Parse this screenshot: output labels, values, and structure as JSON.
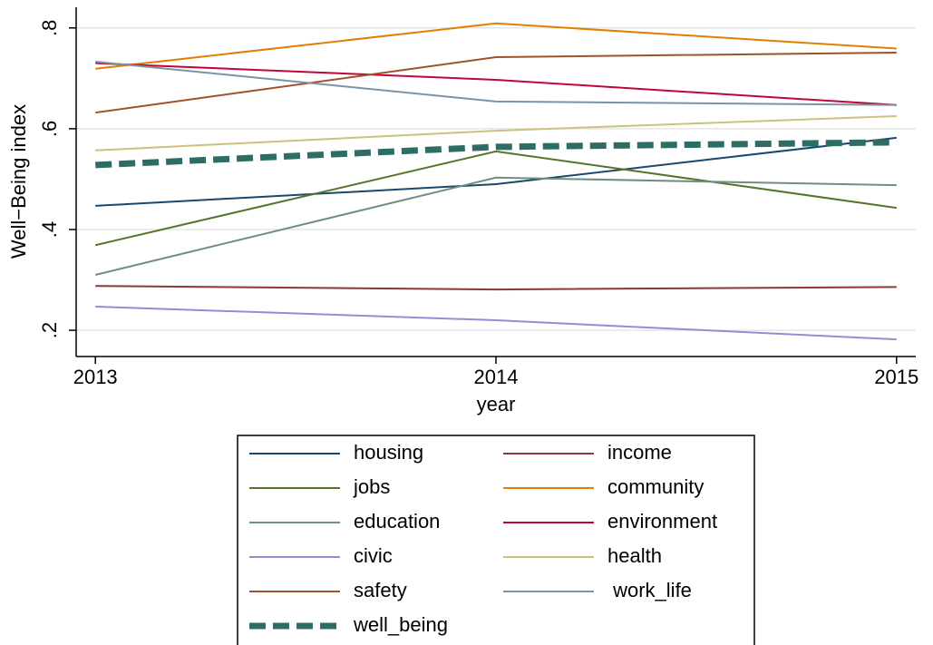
{
  "chart_data": {
    "type": "line",
    "x_label": "year",
    "y_label": "Well−Being index",
    "x": [
      2013,
      2014,
      2015
    ],
    "xlim": [
      2012.952,
      2015.048
    ],
    "xticks": [
      2013,
      2014,
      2015
    ],
    "ylim": [
      0.148,
      0.841
    ],
    "yticks": [
      {
        "value": 0.2,
        "label": ".2"
      },
      {
        "value": 0.4,
        "label": ".4"
      },
      {
        "value": 0.6,
        "label": ".6"
      },
      {
        "value": 0.8,
        "label": ".8"
      }
    ],
    "grid": true,
    "series": [
      {
        "name": "housing",
        "color": "#1a476f",
        "values": [
          0.447,
          0.49,
          0.582
        ]
      },
      {
        "name": "income",
        "color": "#90353b",
        "values": [
          0.288,
          0.281,
          0.286
        ]
      },
      {
        "name": "jobs",
        "color": "#55752f",
        "values": [
          0.369,
          0.555,
          0.443
        ]
      },
      {
        "name": "community",
        "color": "#e37e00",
        "values": [
          0.719,
          0.809,
          0.759
        ]
      },
      {
        "name": "education",
        "color": "#6e8e84",
        "values": [
          0.31,
          0.503,
          0.488
        ]
      },
      {
        "name": "environment",
        "color": "#c10534",
        "values": [
          0.73,
          0.697,
          0.647
        ]
      },
      {
        "name": "civic",
        "color": "#938dd2",
        "values": [
          0.247,
          0.22,
          0.182
        ]
      },
      {
        "name": "health",
        "color": "#cac27e",
        "values": [
          0.557,
          0.596,
          0.625
        ]
      },
      {
        "name": "safety",
        "color": "#a0522d",
        "values": [
          0.632,
          0.742,
          0.751
        ]
      },
      {
        "name": " work_life",
        "color": "#7b92a8",
        "values": [
          0.733,
          0.654,
          0.647
        ]
      },
      {
        "name": "well_being",
        "color": "#2d6d66",
        "dashed": true,
        "values": [
          0.528,
          0.564,
          0.573
        ]
      }
    ]
  }
}
